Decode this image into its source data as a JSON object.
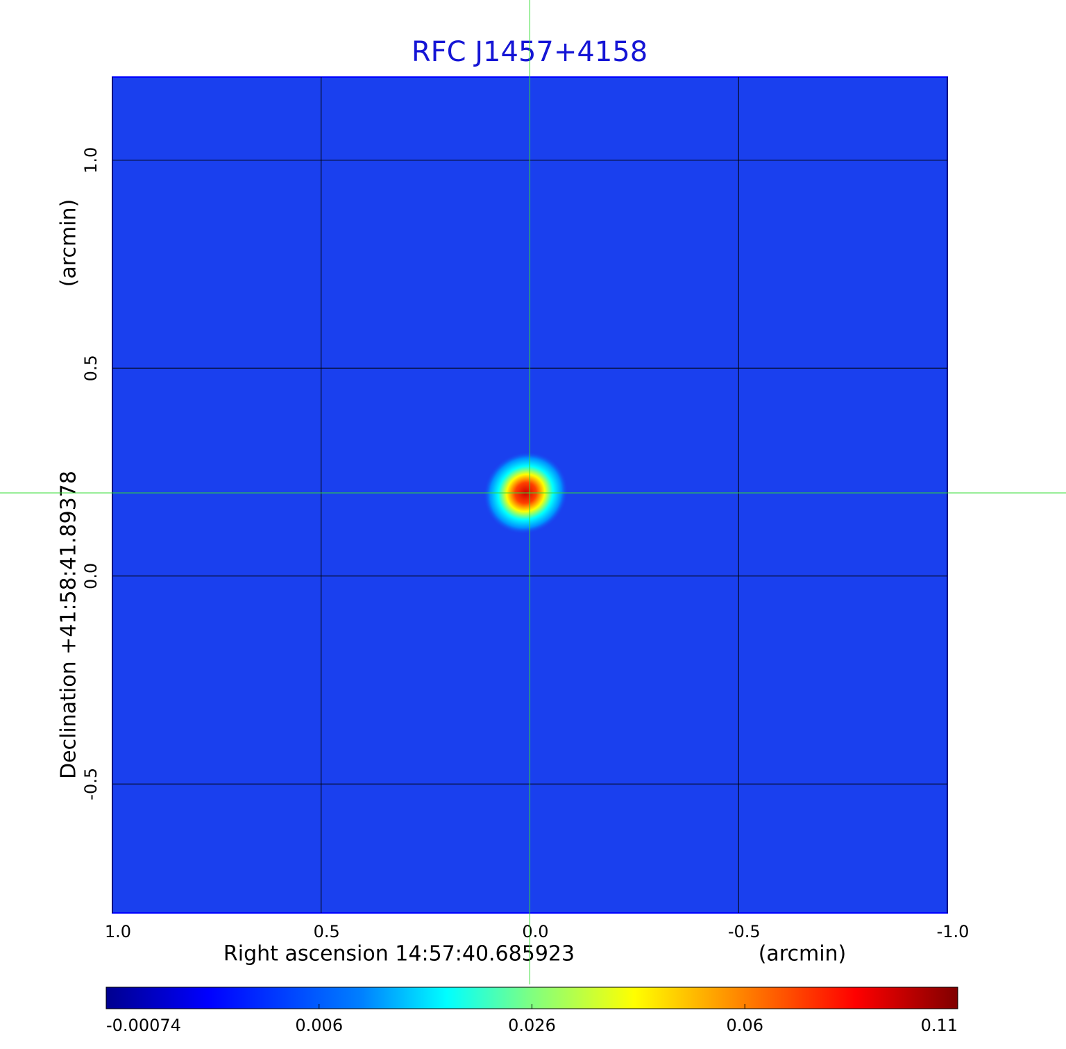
{
  "chart_data": {
    "type": "image",
    "title": "RFC J1457+4158",
    "x_label": "Right ascension  14:57:40.685923",
    "x_unit": "(arcmin)",
    "y_label": "Declination  +41:58:41.89378",
    "y_unit": "(arcmin)",
    "xlim": [
      1.0,
      -1.0
    ],
    "ylim": [
      -0.81,
      1.2
    ],
    "xticks": [
      {
        "value": 1,
        "label": "1.0"
      },
      0.5,
      {
        "value": 0,
        "label": "0.0"
      },
      -0.5,
      {
        "value": -1,
        "label": "-1.0"
      }
    ],
    "yticks": [
      -0.5,
      {
        "value": 0,
        "label": "0.0"
      },
      0.5,
      {
        "value": 1,
        "label": "1.0"
      }
    ],
    "grid": true,
    "crosshair": {
      "x": 0,
      "y": 0.2,
      "color": "#33dd33"
    },
    "source": {
      "x": 0.01,
      "y": 0.2,
      "peak": 0.11
    },
    "colormap": "jet",
    "colorbar_ticks": [
      -0.00074,
      0.006,
      0.026,
      0.06,
      0.11
    ]
  }
}
